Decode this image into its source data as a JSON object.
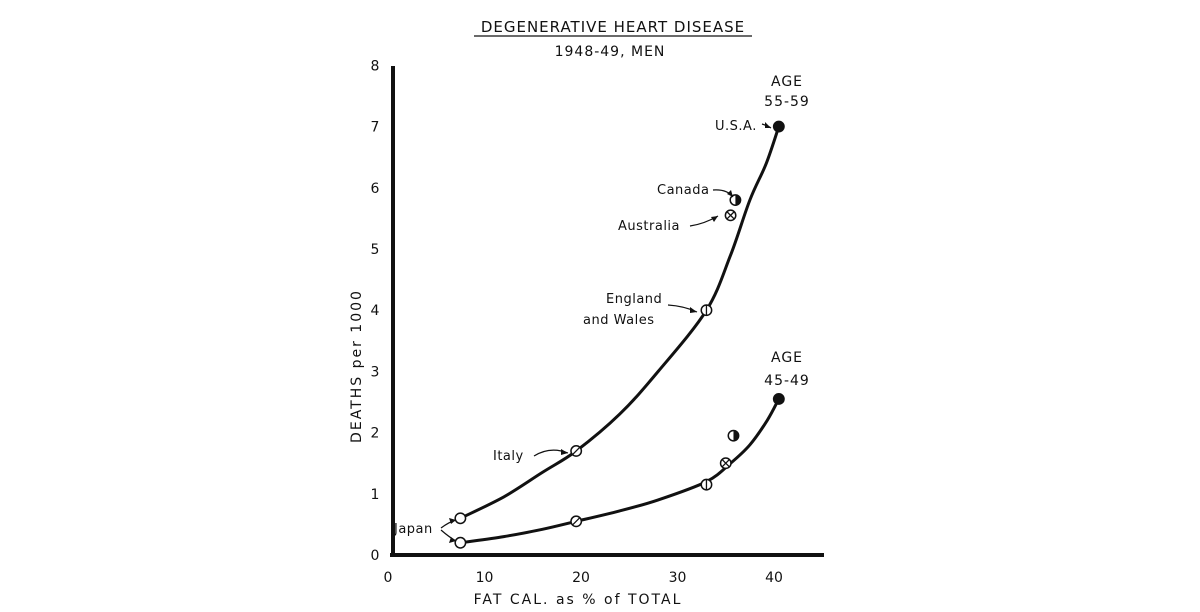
{
  "chart_data": {
    "type": "scatter",
    "title": "DEGENERATIVE HEART DISEASE",
    "subtitle": "1948-49, MEN",
    "xlabel": "FAT CAL. as % of TOTAL",
    "ylabel": "DEATHS per 1000",
    "xlim": [
      0,
      45
    ],
    "ylim": [
      0,
      8
    ],
    "xticks": [
      "0",
      "10",
      "20",
      "30",
      "40"
    ],
    "yticks": [
      "0",
      "1",
      "2",
      "3",
      "4",
      "5",
      "6",
      "7",
      "8"
    ],
    "grid": false,
    "series": [
      {
        "name": "AGE 55-59",
        "label_line1": "AGE",
        "label_line2": "55-59",
        "points": [
          {
            "country": "Japan",
            "x": 7.5,
            "y": 0.6,
            "marker": "open"
          },
          {
            "country": "Italy",
            "x": 19.5,
            "y": 1.7,
            "marker": "slash"
          },
          {
            "country": "England and Wales",
            "x": 33,
            "y": 4.0,
            "marker": "vbar"
          },
          {
            "country": "Australia",
            "x": 35.5,
            "y": 5.55,
            "marker": "cross"
          },
          {
            "country": "Canada",
            "x": 36,
            "y": 5.8,
            "marker": "half"
          },
          {
            "country": "U.S.A.",
            "x": 40.5,
            "y": 7.0,
            "marker": "filled"
          }
        ],
        "curve": [
          [
            7.5,
            0.6
          ],
          [
            12,
            0.95
          ],
          [
            16,
            1.35
          ],
          [
            19.5,
            1.7
          ],
          [
            24,
            2.3
          ],
          [
            28,
            3.0
          ],
          [
            33,
            4.0
          ],
          [
            35.5,
            4.9
          ],
          [
            37.5,
            5.8
          ],
          [
            39.2,
            6.4
          ],
          [
            40.5,
            7.0
          ]
        ]
      },
      {
        "name": "AGE 45-49",
        "label_line1": "AGE",
        "label_line2": "45-49",
        "points": [
          {
            "country": "Japan",
            "x": 7.5,
            "y": 0.2,
            "marker": "open"
          },
          {
            "country": "Italy",
            "x": 19.5,
            "y": 0.55,
            "marker": "slash"
          },
          {
            "country": "England and Wales",
            "x": 33,
            "y": 1.15,
            "marker": "vbar"
          },
          {
            "country": "Australia",
            "x": 35,
            "y": 1.5,
            "marker": "cross"
          },
          {
            "country": "Canada",
            "x": 35.8,
            "y": 1.95,
            "marker": "half"
          },
          {
            "country": "U.S.A.",
            "x": 40.5,
            "y": 2.55,
            "marker": "filled"
          }
        ],
        "curve": [
          [
            7.5,
            0.2
          ],
          [
            12,
            0.3
          ],
          [
            16,
            0.42
          ],
          [
            19.5,
            0.55
          ],
          [
            24,
            0.72
          ],
          [
            28,
            0.9
          ],
          [
            33,
            1.2
          ],
          [
            35.5,
            1.5
          ],
          [
            37.5,
            1.8
          ],
          [
            39.3,
            2.2
          ],
          [
            40.5,
            2.55
          ]
        ]
      }
    ],
    "annotations": [
      {
        "text": "U.S.A.",
        "target": "U.S.A."
      },
      {
        "text": "Canada",
        "target": "Canada"
      },
      {
        "text": "Australia",
        "target": "Australia"
      },
      {
        "text": "England",
        "target": "England and Wales"
      },
      {
        "text": "and Wales",
        "target": "England and Wales"
      },
      {
        "text": "Italy",
        "target": "Italy"
      },
      {
        "text": "Japan",
        "target": "Japan"
      }
    ]
  }
}
